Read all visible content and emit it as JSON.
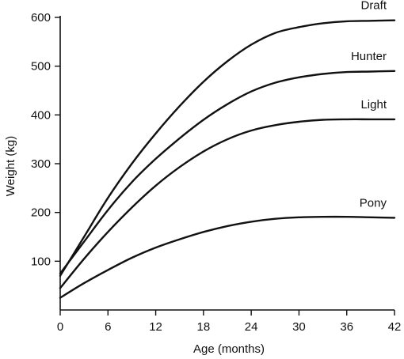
{
  "chart_data": {
    "type": "line",
    "title": "",
    "xlabel": "Age (months)",
    "ylabel": "Weight (kg)",
    "xlim": [
      0,
      42
    ],
    "ylim": [
      0,
      600
    ],
    "grid": false,
    "legend": "none",
    "x_ticks": [
      0,
      6,
      12,
      18,
      24,
      30,
      36,
      42
    ],
    "y_ticks": [
      100,
      200,
      300,
      400,
      500,
      600
    ],
    "x": [
      0,
      3,
      6,
      9,
      12,
      15,
      18,
      21,
      24,
      27,
      30,
      33,
      36,
      39,
      42
    ],
    "series": [
      {
        "name": "Draft",
        "values": [
          70,
          150,
          230,
          300,
          362,
          418,
          468,
          510,
          544,
          568,
          580,
          588,
          592,
          593,
          594
        ],
        "color": "#111111"
      },
      {
        "name": "Hunter",
        "values": [
          75,
          140,
          205,
          262,
          310,
          352,
          390,
          422,
          448,
          466,
          477,
          484,
          488,
          489,
          490
        ],
        "color": "#111111"
      },
      {
        "name": "Light",
        "values": [
          45,
          105,
          160,
          210,
          255,
          293,
          325,
          350,
          368,
          379,
          386,
          390,
          391,
          391,
          391
        ],
        "color": "#111111"
      },
      {
        "name": "Pony",
        "values": [
          25,
          55,
          82,
          107,
          128,
          145,
          160,
          172,
          181,
          187,
          190,
          191,
          191,
          190,
          189
        ],
        "color": "#111111"
      }
    ]
  }
}
